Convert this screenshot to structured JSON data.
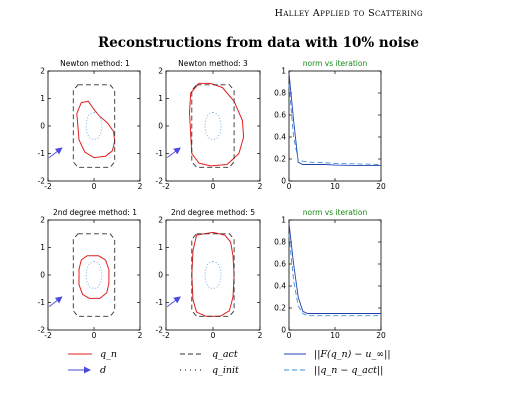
{
  "page": {
    "running_header": "Halley Applied to Scattering",
    "figure_title": "Reconstructions from data with 10% noise"
  },
  "colors": {
    "q_n": "#e02020",
    "q_act": "#333333",
    "q_init": "#7ab0e8",
    "d": "#4a4ae0",
    "residual": "#2040b0",
    "error": "#3c8cd8",
    "green_title": "#1a8a1a"
  },
  "panel_titles": {
    "newton_1": "Newton method: 1",
    "newton_3": "Newton method: 3",
    "norm_top": "norm vs iteration",
    "second_1": "2nd degree method: 1",
    "second_5": "2nd degree method: 5",
    "norm_bottom": "norm vs iteration"
  },
  "legend": {
    "q_n": "q_n",
    "d": "d",
    "q_act": "q_act",
    "q_init": "q_init",
    "residual": "||F(q_n) − u_∞||",
    "error": "||q_n − q_act||"
  },
  "chart_data": [
    {
      "type": "line",
      "title": "Newton method: 1",
      "xlim": [
        -2,
        2
      ],
      "ylim": [
        -2,
        2
      ],
      "xticks": [
        -2,
        0,
        2
      ],
      "yticks": [
        -2,
        -1,
        0,
        1,
        2
      ],
      "series": [
        {
          "name": "q_n",
          "closed": true,
          "points": [
            [
              0.0,
              0.6
            ],
            [
              0.25,
              0.35
            ],
            [
              0.6,
              0.1
            ],
            [
              0.85,
              -0.2
            ],
            [
              0.9,
              -0.55
            ],
            [
              0.8,
              -0.9
            ],
            [
              0.5,
              -1.1
            ],
            [
              0.0,
              -1.15
            ],
            [
              -0.4,
              -0.95
            ],
            [
              -0.65,
              -0.5
            ],
            [
              -0.7,
              0.0
            ],
            [
              -0.75,
              0.45
            ],
            [
              -0.55,
              0.85
            ],
            [
              -0.25,
              0.9
            ]
          ]
        },
        {
          "name": "q_act",
          "closed": true,
          "points": [
            [
              -0.7,
              1.5
            ],
            [
              0.7,
              1.5
            ],
            [
              0.9,
              1.3
            ],
            [
              0.9,
              -1.3
            ],
            [
              0.7,
              -1.5
            ],
            [
              -0.7,
              -1.5
            ],
            [
              -0.9,
              -1.3
            ],
            [
              -0.9,
              1.3
            ]
          ]
        },
        {
          "name": "q_init",
          "closed": true,
          "points": [
            [
              0.0,
              0.5
            ],
            [
              0.2,
              0.43
            ],
            [
              0.3,
              0.25
            ],
            [
              0.35,
              0.0
            ],
            [
              0.3,
              -0.25
            ],
            [
              0.2,
              -0.43
            ],
            [
              0.0,
              -0.5
            ],
            [
              -0.2,
              -0.43
            ],
            [
              -0.3,
              -0.25
            ],
            [
              -0.35,
              0.0
            ],
            [
              -0.3,
              0.25
            ],
            [
              -0.2,
              0.43
            ]
          ]
        },
        {
          "name": "d",
          "arrow": true,
          "points": [
            [
              -1.95,
              -1.15
            ],
            [
              -1.4,
              -0.8
            ]
          ]
        }
      ]
    },
    {
      "type": "line",
      "title": "Newton method: 3",
      "xlim": [
        -2,
        2
      ],
      "ylim": [
        -2,
        2
      ],
      "xticks": [
        -2,
        0,
        2
      ],
      "yticks": [
        -2,
        -1,
        0,
        1,
        2
      ],
      "series": [
        {
          "name": "q_n",
          "closed": true,
          "points": [
            [
              -0.6,
              1.55
            ],
            [
              -0.1,
              1.55
            ],
            [
              0.4,
              1.4
            ],
            [
              0.9,
              0.9
            ],
            [
              1.25,
              0.2
            ],
            [
              1.3,
              -0.4
            ],
            [
              1.1,
              -1.0
            ],
            [
              0.6,
              -1.4
            ],
            [
              -0.1,
              -1.45
            ],
            [
              -0.6,
              -1.35
            ],
            [
              -0.9,
              -1.0
            ],
            [
              -0.95,
              -0.3
            ],
            [
              -1.0,
              0.5
            ],
            [
              -0.95,
              1.2
            ]
          ]
        },
        {
          "name": "q_act",
          "closed": true,
          "points": [
            [
              -0.7,
              1.5
            ],
            [
              0.7,
              1.5
            ],
            [
              0.9,
              1.3
            ],
            [
              0.9,
              -1.3
            ],
            [
              0.7,
              -1.5
            ],
            [
              -0.7,
              -1.5
            ],
            [
              -0.9,
              -1.3
            ],
            [
              -0.9,
              1.3
            ]
          ]
        },
        {
          "name": "q_init",
          "closed": true,
          "points": [
            [
              0.0,
              0.5
            ],
            [
              0.2,
              0.43
            ],
            [
              0.3,
              0.25
            ],
            [
              0.35,
              0.0
            ],
            [
              0.3,
              -0.25
            ],
            [
              0.2,
              -0.43
            ],
            [
              0.0,
              -0.5
            ],
            [
              -0.2,
              -0.43
            ],
            [
              -0.3,
              -0.25
            ],
            [
              -0.35,
              0.0
            ],
            [
              -0.3,
              0.25
            ],
            [
              -0.2,
              0.43
            ]
          ]
        },
        {
          "name": "d",
          "arrow": true,
          "points": [
            [
              -1.95,
              -1.15
            ],
            [
              -1.4,
              -0.8
            ]
          ]
        }
      ]
    },
    {
      "type": "line",
      "title": "norm vs iteration",
      "xlim": [
        0,
        20
      ],
      "ylim": [
        0,
        1
      ],
      "xticks": [
        0,
        10,
        20
      ],
      "yticks": [
        0,
        0.2,
        0.4,
        0.6,
        0.8,
        1
      ],
      "series": [
        {
          "name": "||F(q_n) − u_∞||",
          "x": [
            0,
            1,
            2,
            3,
            4,
            5,
            6,
            8,
            10,
            15,
            20
          ],
          "y": [
            0.98,
            0.55,
            0.17,
            0.15,
            0.15,
            0.15,
            0.15,
            0.15,
            0.145,
            0.14,
            0.14
          ]
        },
        {
          "name": "||q_n − q_act||",
          "x": [
            0,
            1,
            2,
            3,
            4,
            5,
            6,
            8,
            10,
            15,
            20
          ],
          "y": [
            0.88,
            0.4,
            0.19,
            0.18,
            0.175,
            0.17,
            0.17,
            0.165,
            0.16,
            0.155,
            0.15
          ]
        }
      ]
    },
    {
      "type": "line",
      "title": "2nd degree method: 1",
      "xlim": [
        -2,
        2
      ],
      "ylim": [
        -2,
        2
      ],
      "xticks": [
        -2,
        0,
        2
      ],
      "yticks": [
        -2,
        -1,
        0,
        1,
        2
      ],
      "series": [
        {
          "name": "q_n",
          "closed": true,
          "points": [
            [
              -0.3,
              0.7
            ],
            [
              0.2,
              0.7
            ],
            [
              0.5,
              0.55
            ],
            [
              0.65,
              0.2
            ],
            [
              0.65,
              -0.3
            ],
            [
              0.55,
              -0.65
            ],
            [
              0.25,
              -0.85
            ],
            [
              -0.2,
              -0.85
            ],
            [
              -0.5,
              -0.7
            ],
            [
              -0.65,
              -0.35
            ],
            [
              -0.65,
              0.2
            ],
            [
              -0.55,
              0.55
            ]
          ]
        },
        {
          "name": "q_act",
          "closed": true,
          "points": [
            [
              -0.7,
              1.5
            ],
            [
              0.7,
              1.5
            ],
            [
              0.9,
              1.3
            ],
            [
              0.9,
              -1.3
            ],
            [
              0.7,
              -1.5
            ],
            [
              -0.7,
              -1.5
            ],
            [
              -0.9,
              -1.3
            ],
            [
              -0.9,
              1.3
            ]
          ]
        },
        {
          "name": "q_init",
          "closed": true,
          "points": [
            [
              0.0,
              0.5
            ],
            [
              0.2,
              0.43
            ],
            [
              0.3,
              0.25
            ],
            [
              0.35,
              0.0
            ],
            [
              0.3,
              -0.25
            ],
            [
              0.2,
              -0.43
            ],
            [
              0.0,
              -0.5
            ],
            [
              -0.2,
              -0.43
            ],
            [
              -0.3,
              -0.25
            ],
            [
              -0.35,
              0.0
            ],
            [
              -0.3,
              0.25
            ],
            [
              -0.2,
              0.43
            ]
          ]
        },
        {
          "name": "d",
          "arrow": true,
          "points": [
            [
              -1.95,
              -1.15
            ],
            [
              -1.4,
              -0.8
            ]
          ]
        }
      ]
    },
    {
      "type": "line",
      "title": "2nd degree method: 5",
      "xlim": [
        -2,
        2
      ],
      "ylim": [
        -2,
        2
      ],
      "xticks": [
        -2,
        0,
        2
      ],
      "yticks": [
        -2,
        -1,
        0,
        1,
        2
      ],
      "series": [
        {
          "name": "q_n",
          "closed": true,
          "points": [
            [
              -0.7,
              1.45
            ],
            [
              0.0,
              1.55
            ],
            [
              0.5,
              1.45
            ],
            [
              0.75,
              1.2
            ],
            [
              0.85,
              0.7
            ],
            [
              0.9,
              0.0
            ],
            [
              0.85,
              -0.8
            ],
            [
              0.7,
              -1.3
            ],
            [
              0.3,
              -1.5
            ],
            [
              -0.3,
              -1.5
            ],
            [
              -0.7,
              -1.35
            ],
            [
              -0.85,
              -0.9
            ],
            [
              -0.9,
              0.0
            ],
            [
              -0.85,
              0.9
            ]
          ]
        },
        {
          "name": "q_act",
          "closed": true,
          "points": [
            [
              -0.7,
              1.5
            ],
            [
              0.7,
              1.5
            ],
            [
              0.9,
              1.3
            ],
            [
              0.9,
              -1.3
            ],
            [
              0.7,
              -1.5
            ],
            [
              -0.7,
              -1.5
            ],
            [
              -0.9,
              -1.3
            ],
            [
              -0.9,
              1.3
            ]
          ]
        },
        {
          "name": "q_init",
          "closed": true,
          "points": [
            [
              0.0,
              0.5
            ],
            [
              0.2,
              0.43
            ],
            [
              0.3,
              0.25
            ],
            [
              0.35,
              0.0
            ],
            [
              0.3,
              -0.25
            ],
            [
              0.2,
              -0.43
            ],
            [
              0.0,
              -0.5
            ],
            [
              -0.2,
              -0.43
            ],
            [
              -0.3,
              -0.25
            ],
            [
              -0.35,
              0.0
            ],
            [
              -0.3,
              0.25
            ],
            [
              -0.2,
              0.43
            ]
          ]
        },
        {
          "name": "d",
          "arrow": true,
          "points": [
            [
              -1.95,
              -1.15
            ],
            [
              -1.4,
              -0.8
            ]
          ]
        }
      ]
    },
    {
      "type": "line",
      "title": "norm vs iteration",
      "xlim": [
        0,
        20
      ],
      "ylim": [
        0,
        1
      ],
      "xticks": [
        0,
        10,
        20
      ],
      "yticks": [
        0,
        0.2,
        0.4,
        0.6,
        0.8,
        1
      ],
      "series": [
        {
          "name": "||F(q_n) − u_∞||",
          "x": [
            0,
            1,
            2,
            3,
            4,
            5,
            6,
            8,
            10,
            15,
            20
          ],
          "y": [
            0.97,
            0.6,
            0.3,
            0.17,
            0.15,
            0.15,
            0.15,
            0.15,
            0.15,
            0.15,
            0.15
          ]
        },
        {
          "name": "||q_n − q_act||",
          "x": [
            0,
            1,
            2,
            3,
            4,
            5,
            6,
            8,
            10,
            15,
            20
          ],
          "y": [
            0.87,
            0.45,
            0.22,
            0.15,
            0.13,
            0.13,
            0.13,
            0.13,
            0.13,
            0.13,
            0.13
          ]
        }
      ]
    }
  ]
}
